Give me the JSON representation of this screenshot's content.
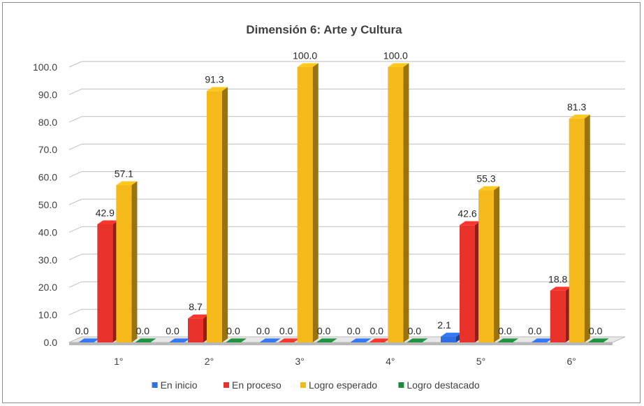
{
  "chart_data": {
    "type": "bar",
    "title": "Dimensión 6: Arte y Cultura",
    "categories": [
      "1°",
      "2°",
      "3°",
      "4°",
      "5°",
      "6°"
    ],
    "series": [
      {
        "name": "En inicio",
        "color": "#2f6fe4",
        "values": [
          0.0,
          0.0,
          0.0,
          0.0,
          2.1,
          0.0
        ]
      },
      {
        "name": "En proceso",
        "color": "#e8322a",
        "values": [
          42.9,
          8.7,
          0.0,
          0.0,
          42.6,
          18.8
        ]
      },
      {
        "name": "Logro esperado",
        "color": "#f6b91a",
        "values": [
          57.1,
          91.3,
          100.0,
          100.0,
          55.3,
          81.3
        ]
      },
      {
        "name": "Logro destacado",
        "color": "#1e8a3c",
        "values": [
          0.0,
          0.0,
          0.0,
          0.0,
          0.0,
          0.0
        ]
      }
    ],
    "data_labels": [
      [
        "0.0",
        "42.9",
        "57.1",
        "0.0"
      ],
      [
        "0.0",
        "8.7",
        "91.3",
        "0.0"
      ],
      [
        "0.0",
        "0.0",
        "100.0",
        "0.0"
      ],
      [
        "0.0",
        "0.0",
        "100.0",
        "0.0"
      ],
      [
        "2.1",
        "42.6",
        "55.3",
        "0.0"
      ],
      [
        "0.0",
        "18.8",
        "81.3",
        "0.0"
      ]
    ],
    "yticks": [
      "0.0",
      "10.0",
      "20.0",
      "30.0",
      "40.0",
      "50.0",
      "60.0",
      "70.0",
      "80.0",
      "90.0",
      "100.0"
    ],
    "ylim": [
      0,
      100
    ],
    "grid": true,
    "legend_position": "bottom"
  }
}
